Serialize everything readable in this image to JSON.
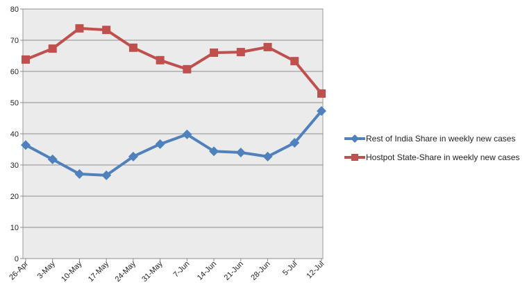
{
  "chart_data": {
    "type": "line",
    "title": "",
    "xlabel": "",
    "ylabel": "",
    "ylim": [
      0,
      80
    ],
    "yticks": [
      0,
      10,
      20,
      30,
      40,
      50,
      60,
      70,
      80
    ],
    "grid": true,
    "legend_position": "right",
    "categories": [
      "26-Apr",
      "3-May",
      "10-May",
      "17-May",
      "24-May",
      "31-May",
      "7-Jun",
      "14-Jun",
      "21-Jun",
      "28-Jun",
      "5-Jul",
      "12-Jul"
    ],
    "series": [
      {
        "name": "Rest of India Share in weekly new cases",
        "color": "#4f81bd",
        "marker": "diamond",
        "values": [
          36.4,
          31.8,
          27.1,
          26.7,
          32.7,
          36.7,
          39.8,
          34.4,
          34.0,
          32.7,
          37.1,
          47.3
        ]
      },
      {
        "name": "Hostpot State-Share in weekly new cases",
        "color": "#c0504d",
        "marker": "square",
        "values": [
          63.8,
          67.3,
          73.8,
          73.3,
          67.6,
          63.6,
          60.7,
          66.0,
          66.2,
          67.8,
          63.3,
          52.9
        ]
      }
    ]
  }
}
